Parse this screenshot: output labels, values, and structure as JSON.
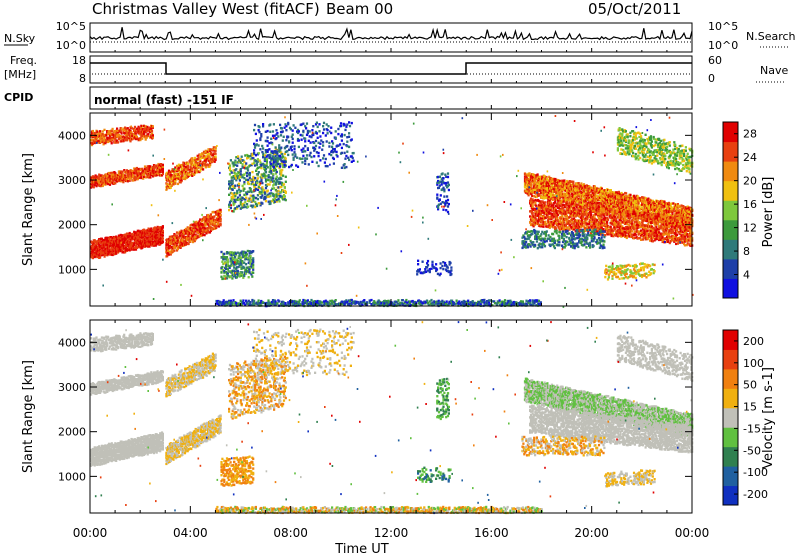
{
  "header": {
    "station": "Christmas Valley West (fitACF)",
    "beam": "Beam 00",
    "date": "05/Oct/2011",
    "cpid_text": "normal (fast) -151 IF"
  },
  "strip_labels": {
    "nsky": "N.Sky",
    "freq": "Freq.",
    "freq_unit": "[MHz]",
    "cpid": "CPID",
    "nsearch": "N.Search",
    "nave": "Nave"
  },
  "strip_ticks": {
    "noise_left": [
      "10^5",
      "10^0"
    ],
    "noise_right": [
      "10^5",
      "10^0"
    ],
    "freq_left": [
      "18",
      "8"
    ],
    "nave_right": [
      "60",
      "0"
    ]
  },
  "colors": {
    "power_scale": [
      "#1010e0",
      "#1e3fa8",
      "#2f7a7a",
      "#3c9a3c",
      "#7ec83c",
      "#f0c010",
      "#f08a10",
      "#e84010",
      "#e00000"
    ],
    "velocity_scale": [
      "#1030c0",
      "#2060a0",
      "#308050",
      "#60c040",
      "#c0c0b8",
      "#f0b010",
      "#f08010",
      "#e84010",
      "#e00000"
    ]
  },
  "chart_data": [
    {
      "type": "heatmap",
      "name": "power",
      "xlabel": "",
      "ylabel": "Slant Range [km]",
      "x_ticks": [
        "00:00",
        "04:00",
        "08:00",
        "12:00",
        "16:00",
        "20:00",
        "00:00"
      ],
      "y_ticks": [
        "1000",
        "2000",
        "3000",
        "4000"
      ],
      "ylim": [
        180,
        4500
      ],
      "colorbar_label": "Power [dB]",
      "colorbar_ticks": [
        "4",
        "8",
        "12",
        "16",
        "20",
        "24",
        "28"
      ],
      "colorbar_range": [
        0,
        30
      ]
    },
    {
      "type": "heatmap",
      "name": "velocity",
      "xlabel": "Time UT",
      "ylabel": "Slant Range [km]",
      "x_ticks": [
        "00:00",
        "04:00",
        "08:00",
        "12:00",
        "16:00",
        "20:00",
        "00:00"
      ],
      "y_ticks": [
        "1000",
        "2000",
        "3000",
        "4000"
      ],
      "ylim": [
        180,
        4500
      ],
      "colorbar_label": "Velocity [m s-1]",
      "colorbar_ticks": [
        "200",
        "100",
        "50",
        "15",
        "-15",
        "-50",
        "-100",
        "-200"
      ],
      "colorbar_range": [
        -250,
        250
      ]
    }
  ]
}
